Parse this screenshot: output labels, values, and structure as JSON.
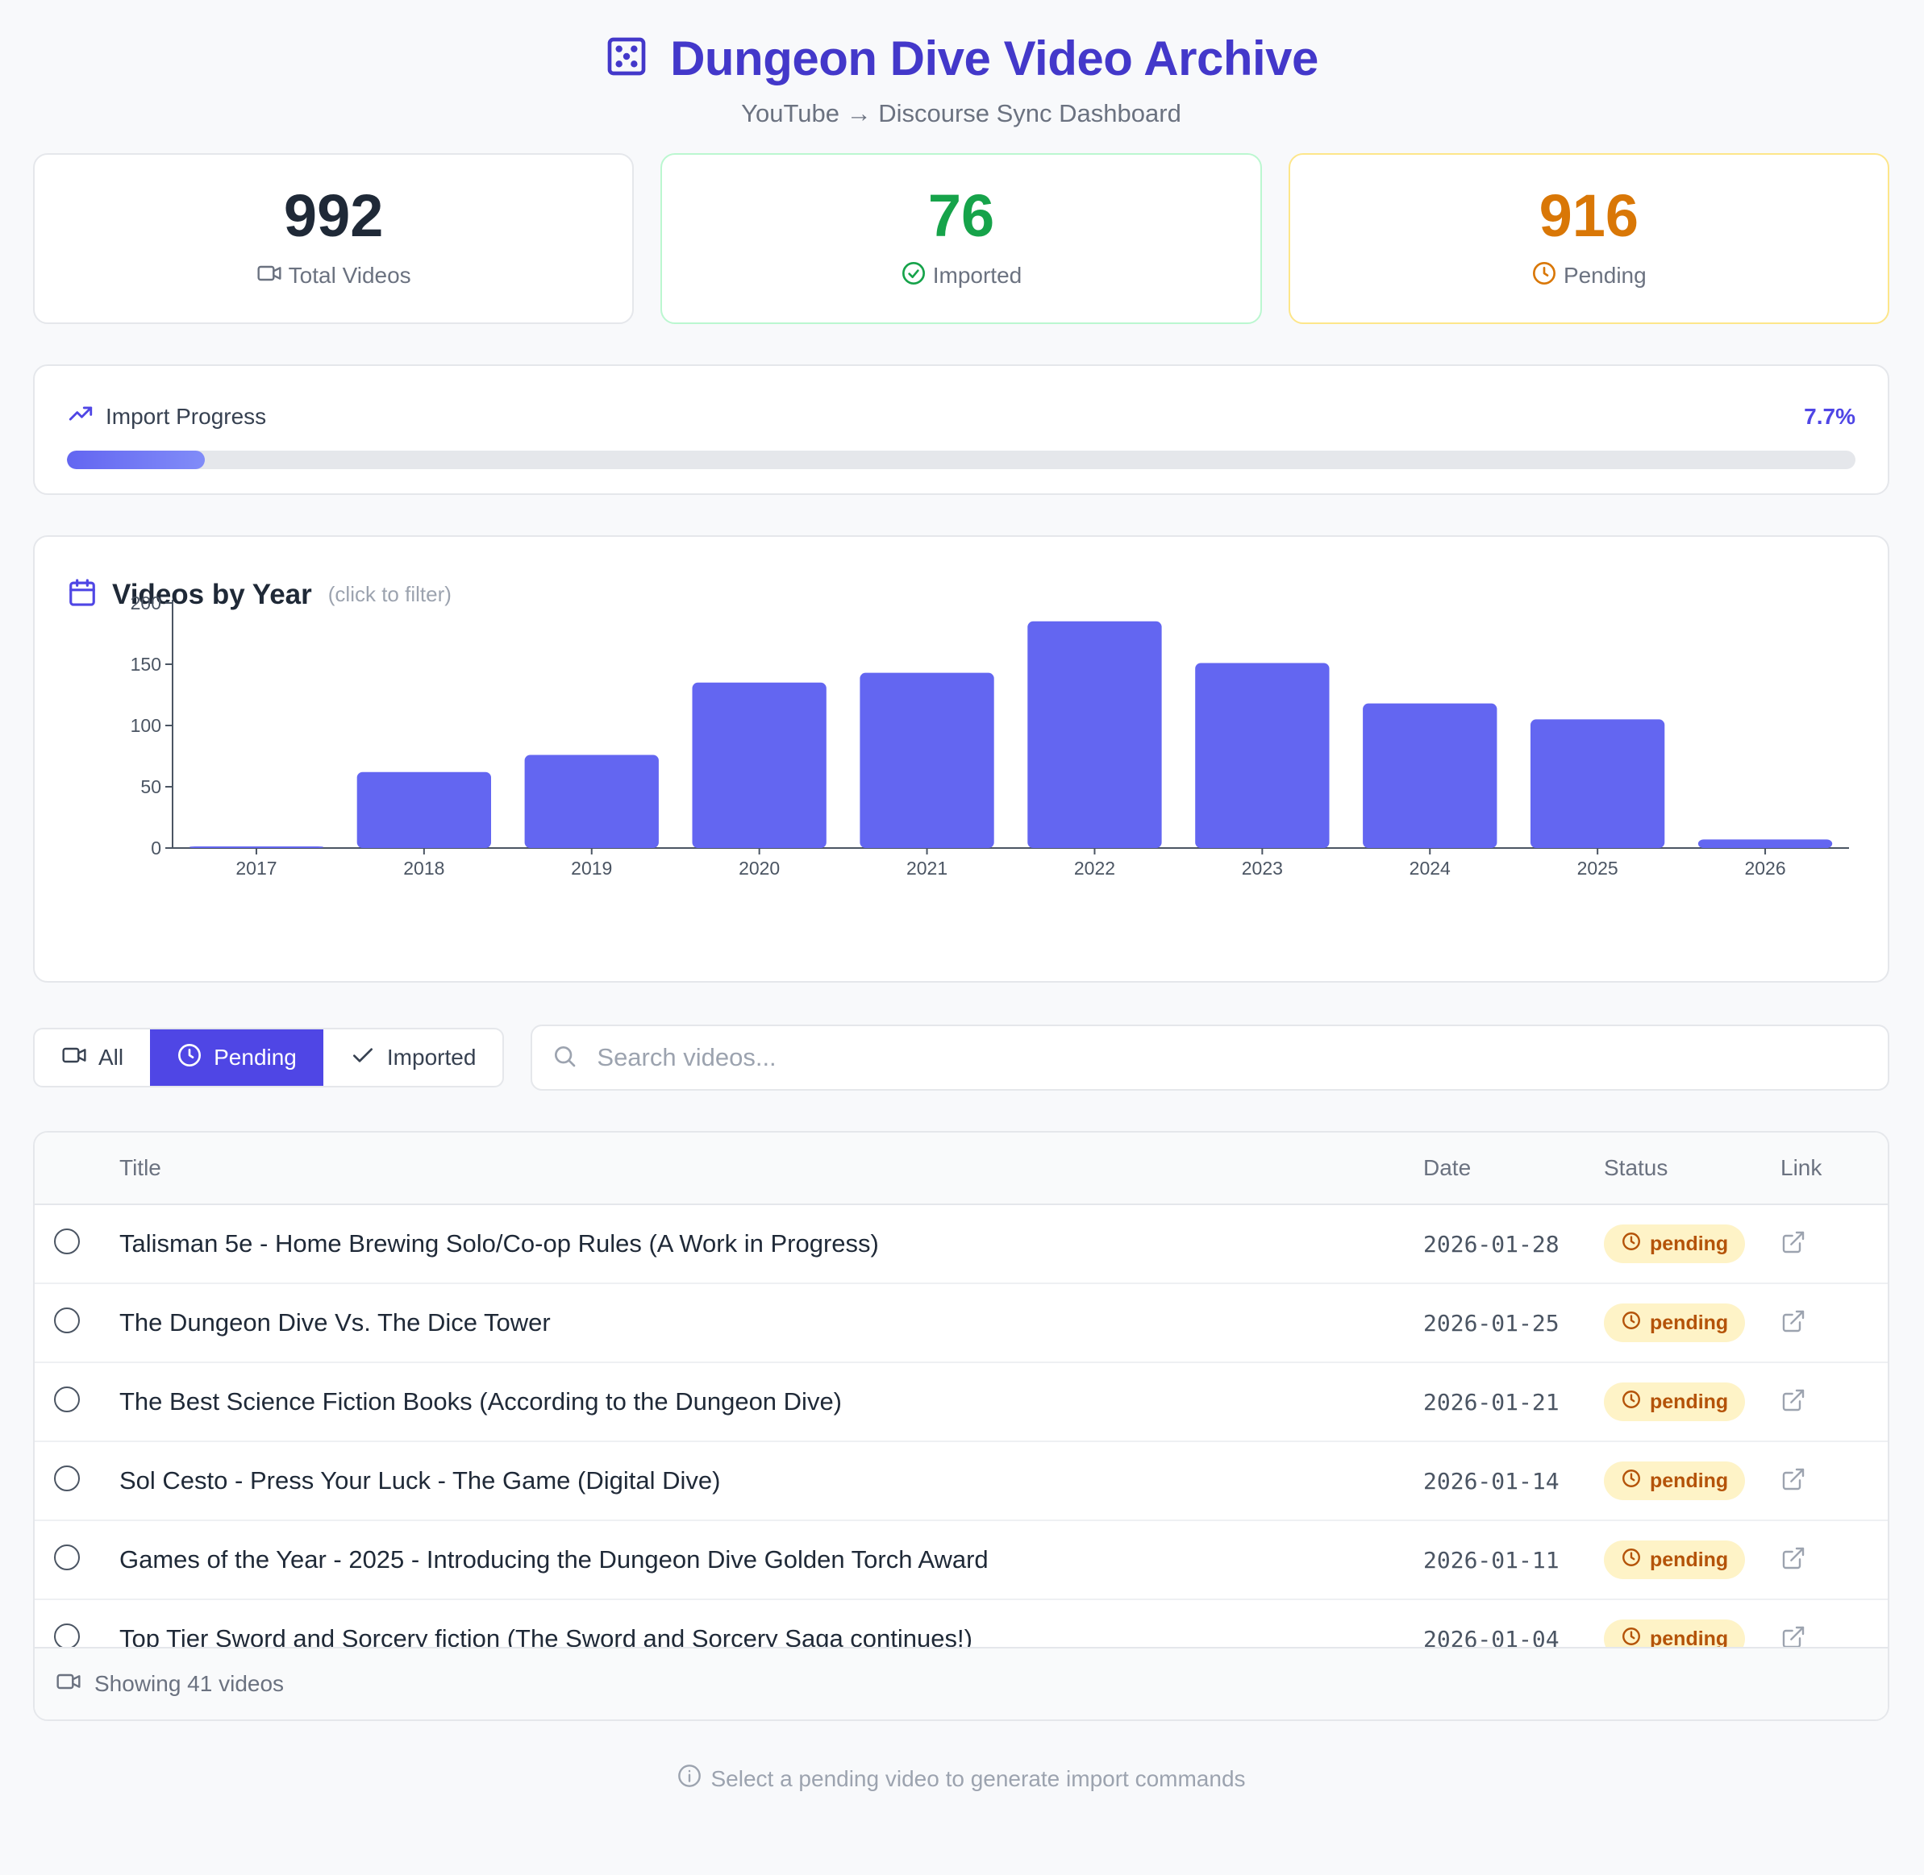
{
  "header": {
    "title": "Dungeon Dive Video Archive",
    "subtitle": "YouTube → Discourse Sync Dashboard",
    "icon": "dice-icon"
  },
  "stats": [
    {
      "value": "992",
      "label": "Total Videos",
      "icon": "video-icon",
      "color": "#1f2937"
    },
    {
      "value": "76",
      "label": "Imported",
      "icon": "check-circle-icon",
      "color": "#16a34a"
    },
    {
      "value": "916",
      "label": "Pending",
      "icon": "clock-icon",
      "color": "#d97706"
    }
  ],
  "progress": {
    "title": "Import Progress",
    "percent_label": "7.7%",
    "fraction": 0.077,
    "icon": "trending-up-icon"
  },
  "year_chart": {
    "title": "Videos by Year",
    "hint": "(click to filter)",
    "icon": "calendar-icon"
  },
  "chart_data": {
    "type": "bar",
    "categories": [
      "2017",
      "2018",
      "2019",
      "2020",
      "2021",
      "2022",
      "2023",
      "2024",
      "2025",
      "2026"
    ],
    "values": [
      1,
      62,
      76,
      135,
      143,
      185,
      151,
      118,
      105,
      7
    ],
    "ylim": [
      0,
      200
    ],
    "yticks": [
      0,
      50,
      100,
      150,
      200
    ],
    "color": "#6366f1",
    "grid": false
  },
  "filters": {
    "options": [
      {
        "label": "All",
        "icon": "video-icon",
        "active": false
      },
      {
        "label": "Pending",
        "icon": "clock-icon",
        "active": true
      },
      {
        "label": "Imported",
        "icon": "check-icon",
        "active": false
      }
    ],
    "search_placeholder": "Search videos..."
  },
  "table": {
    "columns": {
      "title": "Title",
      "date": "Date",
      "status": "Status",
      "link": "Link"
    },
    "rows": [
      {
        "title": "Talisman 5e - Home Brewing Solo/Co-op Rules (A Work in Progress)",
        "date": "2026-01-28",
        "status": "pending"
      },
      {
        "title": "The Dungeon Dive Vs. The Dice Tower",
        "date": "2026-01-25",
        "status": "pending"
      },
      {
        "title": "The Best Science Fiction Books (According to the Dungeon Dive)",
        "date": "2026-01-21",
        "status": "pending"
      },
      {
        "title": "Sol Cesto - Press Your Luck - The Game (Digital Dive)",
        "date": "2026-01-14",
        "status": "pending"
      },
      {
        "title": "Games of the Year - 2025 - Introducing the Dungeon Dive Golden Torch Award",
        "date": "2026-01-11",
        "status": "pending"
      },
      {
        "title": "Top Tier Sword and Sorcery fiction (The Sword and Sorcery Saga continues!)",
        "date": "2026-01-04",
        "status": "pending"
      }
    ],
    "footer": "Showing 41 videos"
  },
  "footer_note": "Select a pending video to generate import commands"
}
